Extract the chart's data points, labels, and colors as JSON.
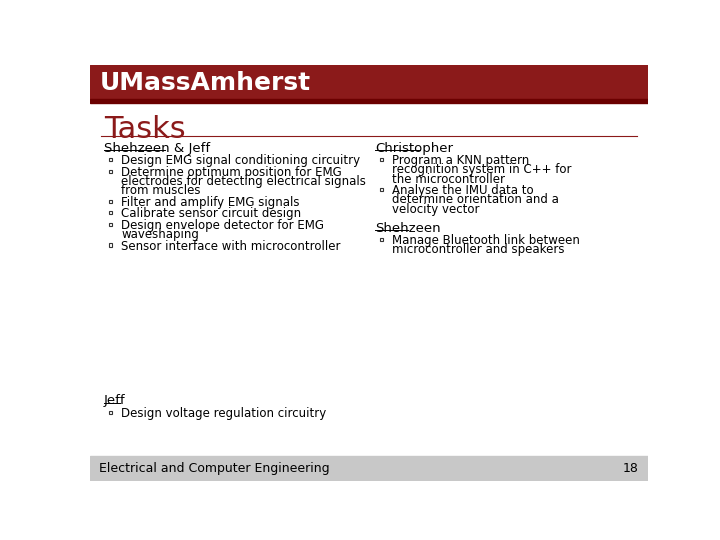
{
  "title": "Tasks",
  "header_color": "#8B1A1A",
  "header_text": "UMassAmherst",
  "header_text_color": "#FFFFFF",
  "title_color": "#8B1A1A",
  "bg_color": "#FFFFFF",
  "footer_bg": "#C8C8C8",
  "footer_text": "Electrical and Computer Engineering",
  "footer_number": "18",
  "separator_color": "#8B1A1A",
  "text_color": "#000000",
  "col1_header": "Shehzeen & Jeff",
  "col1_items": [
    "Design EMG signal conditioning circuitry",
    "Determine optimum position for EMG\nelectrodes for detecting electrical signals\nfrom muscles",
    "Filter and amplify EMG signals",
    "Calibrate sensor circuit design",
    "Design envelope detector for EMG\nwaveshaping",
    "Sensor interface with microcontroller"
  ],
  "col2_header1": "Christopher",
  "col2_items1": [
    "Program a KNN pattern\nrecognition system in C++ for\nthe microcontroller",
    "Analyse the IMU data to\ndetermine orientation and a\nvelocity vector"
  ],
  "col2_header2": "Shehzeen",
  "col2_items2": [
    "Manage Bluetooth link between\nmicrocontroller and speakers"
  ],
  "col3_header": "Jeff",
  "col3_items": [
    "Design voltage regulation circuitry"
  ]
}
